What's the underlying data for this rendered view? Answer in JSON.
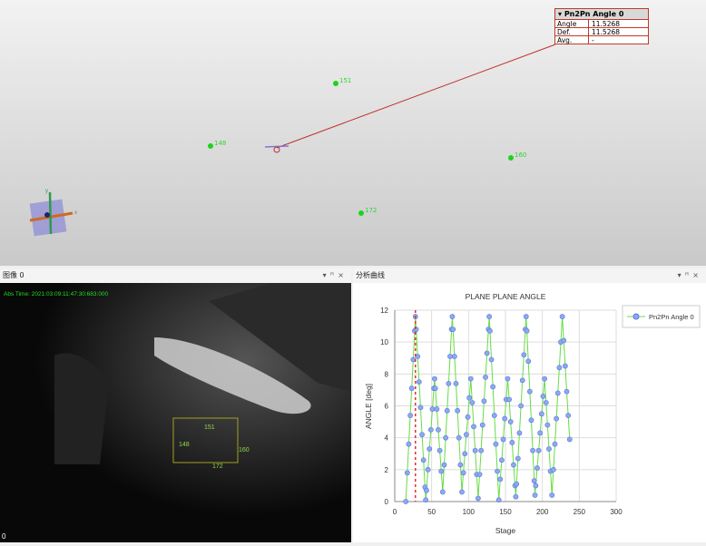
{
  "view3d": {
    "points": [
      {
        "label": "151"
      },
      {
        "label": "148"
      },
      {
        "label": "160"
      },
      {
        "label": "172"
      }
    ],
    "axis_labels": {
      "x": "x",
      "y": "y"
    },
    "infobox": {
      "title": "Pn2Pn Angle 0",
      "rows": [
        {
          "k": "Angle",
          "v": "11.5268"
        },
        {
          "k": "Def.",
          "v": "11.5268"
        },
        {
          "k": "Avg.",
          "v": "-"
        }
      ]
    }
  },
  "image_panel": {
    "title": "图像 0",
    "timestamp": "Abs Time: 2021:03:09:11:47:30:683:000",
    "frame": "0",
    "markers": [
      "151",
      "148",
      "160",
      "172"
    ]
  },
  "chart_panel": {
    "title": "分析曲线"
  },
  "panel_controls": {
    "dropdown": "▾",
    "pin": "ꟸ",
    "close": "×"
  },
  "colors": {
    "series": "#6f8fe8",
    "line": "#66dd44",
    "marker_line": "#e03030",
    "accent_green": "#22dd22"
  },
  "chart_data": {
    "type": "line",
    "title": "PLANE PLANE ANGLE",
    "xlabel": "Stage",
    "ylabel": "ANGLE [deg]",
    "xlim": [
      0,
      300
    ],
    "ylim": [
      0,
      12
    ],
    "xticks": [
      0,
      50,
      100,
      150,
      200,
      250,
      300
    ],
    "yticks": [
      0,
      2,
      4,
      6,
      8,
      10,
      12
    ],
    "grid": true,
    "legend": "right",
    "marker_x": 28,
    "series": [
      {
        "name": "Pn2Pn Angle 0",
        "points": [
          [
            15,
            0
          ],
          [
            17,
            1.8
          ],
          [
            19,
            3.6
          ],
          [
            21,
            5.4
          ],
          [
            23,
            7.1
          ],
          [
            25,
            8.9
          ],
          [
            27,
            10.7
          ],
          [
            28,
            11.6
          ],
          [
            29,
            10.8
          ],
          [
            31,
            9.1
          ],
          [
            33,
            7.5
          ],
          [
            35,
            5.9
          ],
          [
            37,
            4.2
          ],
          [
            39,
            2.6
          ],
          [
            41,
            0.9
          ],
          [
            42,
            0.1
          ],
          [
            43,
            0.7
          ],
          [
            45,
            2.0
          ],
          [
            47,
            3.3
          ],
          [
            49,
            4.5
          ],
          [
            51,
            5.8
          ],
          [
            53,
            7.1
          ],
          [
            54,
            7.7
          ],
          [
            55,
            7.1
          ],
          [
            57,
            5.8
          ],
          [
            59,
            4.5
          ],
          [
            61,
            3.2
          ],
          [
            63,
            1.9
          ],
          [
            65,
            0.6
          ],
          [
            67,
            2.3
          ],
          [
            69,
            4.0
          ],
          [
            71,
            5.7
          ],
          [
            73,
            7.4
          ],
          [
            75,
            9.1
          ],
          [
            77,
            10.8
          ],
          [
            78,
            11.6
          ],
          [
            79,
            10.8
          ],
          [
            81,
            9.1
          ],
          [
            83,
            7.4
          ],
          [
            85,
            5.7
          ],
          [
            87,
            4.0
          ],
          [
            89,
            2.3
          ],
          [
            91,
            0.6
          ],
          [
            93,
            1.8
          ],
          [
            95,
            3.0
          ],
          [
            97,
            4.2
          ],
          [
            99,
            5.3
          ],
          [
            101,
            6.5
          ],
          [
            103,
            7.7
          ],
          [
            105,
            6.2
          ],
          [
            107,
            4.7
          ],
          [
            109,
            3.2
          ],
          [
            111,
            1.7
          ],
          [
            113,
            0.2
          ],
          [
            115,
            1.7
          ],
          [
            117,
            3.2
          ],
          [
            119,
            4.8
          ],
          [
            121,
            6.3
          ],
          [
            123,
            7.8
          ],
          [
            125,
            9.3
          ],
          [
            127,
            10.8
          ],
          [
            128,
            11.6
          ],
          [
            129,
            10.7
          ],
          [
            131,
            8.9
          ],
          [
            133,
            7.2
          ],
          [
            135,
            5.4
          ],
          [
            137,
            3.6
          ],
          [
            139,
            1.9
          ],
          [
            141,
            0.1
          ],
          [
            143,
            1.4
          ],
          [
            145,
            2.6
          ],
          [
            147,
            3.9
          ],
          [
            149,
            5.2
          ],
          [
            151,
            6.4
          ],
          [
            153,
            7.7
          ],
          [
            155,
            6.4
          ],
          [
            157,
            5.0
          ],
          [
            159,
            3.7
          ],
          [
            161,
            2.3
          ],
          [
            163,
            1.0
          ],
          [
            164,
            0.3
          ],
          [
            165,
            1.1
          ],
          [
            167,
            2.7
          ],
          [
            169,
            4.3
          ],
          [
            171,
            6.0
          ],
          [
            173,
            7.6
          ],
          [
            175,
            9.2
          ],
          [
            177,
            10.8
          ],
          [
            178,
            11.6
          ],
          [
            179,
            10.7
          ],
          [
            181,
            8.8
          ],
          [
            183,
            6.9
          ],
          [
            185,
            5.1
          ],
          [
            187,
            3.2
          ],
          [
            189,
            1.3
          ],
          [
            190,
            0.4
          ],
          [
            191,
            1.0
          ],
          [
            193,
            2.1
          ],
          [
            195,
            3.2
          ],
          [
            197,
            4.3
          ],
          [
            199,
            5.5
          ],
          [
            201,
            6.6
          ],
          [
            203,
            7.7
          ],
          [
            205,
            6.2
          ],
          [
            207,
            4.8
          ],
          [
            209,
            3.3
          ],
          [
            211,
            1.9
          ],
          [
            213,
            0.4
          ],
          [
            215,
            2.0
          ],
          [
            217,
            3.6
          ],
          [
            219,
            5.2
          ],
          [
            221,
            6.8
          ],
          [
            223,
            8.4
          ],
          [
            225,
            10.0
          ],
          [
            227,
            11.6
          ],
          [
            229,
            10.1
          ],
          [
            231,
            8.5
          ],
          [
            233,
            6.9
          ],
          [
            235,
            5.4
          ],
          [
            237,
            3.9
          ]
        ]
      }
    ]
  }
}
